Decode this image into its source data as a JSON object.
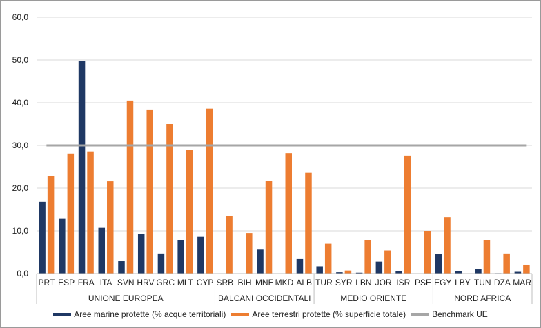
{
  "chart_data": {
    "type": "bar",
    "categories": [
      "PRT",
      "ESP",
      "FRA",
      "ITA",
      "SVN",
      "HRV",
      "GRC",
      "MLT",
      "CYP",
      "SRB",
      "BIH",
      "MNE",
      "MKD",
      "ALB",
      "TUR",
      "SYR",
      "LBN",
      "JOR",
      "ISR",
      "PSE",
      "EGY",
      "LBY",
      "TUN",
      "DZA",
      "MAR"
    ],
    "groups": [
      {
        "label": "UNIONE EUROPEA",
        "count": 9
      },
      {
        "label": "BALCANI OCCIDENTALI",
        "count": 5
      },
      {
        "label": "MEDIO ORIENTE",
        "count": 6
      },
      {
        "label": "NORD AFRICA",
        "count": 5
      }
    ],
    "series": [
      {
        "name": "Aree marine protette (% acque territoriali)",
        "color": "#1f3864",
        "values": [
          16.8,
          12.8,
          49.8,
          10.7,
          2.9,
          9.3,
          4.7,
          7.8,
          8.6,
          0,
          0,
          5.6,
          0,
          3.4,
          1.7,
          0.3,
          0.2,
          2.8,
          0.6,
          0,
          4.6,
          0.6,
          1.1,
          0.1,
          0.4
        ]
      },
      {
        "name": "Aree terrestri protette (% superficie totale)",
        "color": "#ed7d31",
        "values": [
          22.8,
          28.1,
          28.6,
          21.6,
          40.5,
          38.4,
          35.0,
          28.9,
          38.6,
          13.4,
          9.5,
          21.7,
          28.2,
          23.6,
          7.0,
          0.7,
          7.9,
          5.4,
          27.6,
          10.0,
          13.2,
          0,
          7.9,
          4.7,
          2.1
        ]
      }
    ],
    "benchmark": {
      "name": "Benchmark UE",
      "value": 30.0,
      "color": "#a6a6a6"
    },
    "yticks": [
      "0,0",
      "10,0",
      "20,0",
      "30,0",
      "40,0",
      "50,0",
      "60,0"
    ],
    "ylim": [
      0,
      60
    ],
    "grid": true,
    "legend": "bottom"
  }
}
